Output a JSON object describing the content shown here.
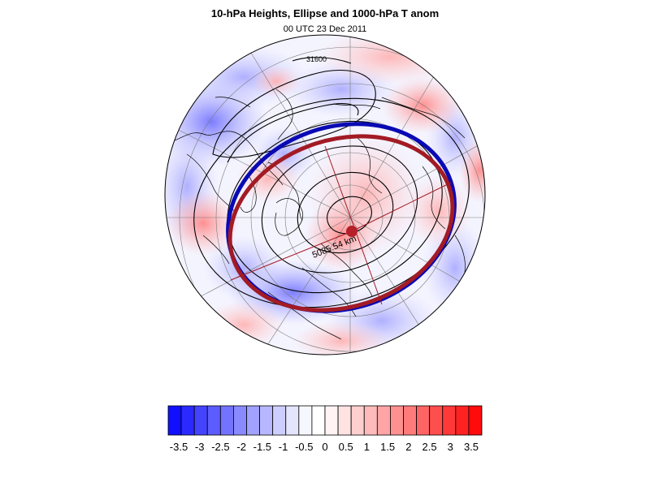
{
  "header": {
    "title": "10-hPa Heights, Ellipse and 1000-hPa T anom",
    "subtitle": "00 UTC 23 Dec 2011"
  },
  "map": {
    "projection": "north-polar-stereographic",
    "field": "1000-hPa T anom",
    "distance_label": "5085.54 km",
    "contour_label": "31600",
    "colors": {
      "ellipse_fit": "#a21b24",
      "ellipse_obs": "#0a0ab4",
      "center_dot": "#b5202a",
      "contour": "#000000",
      "coast": "#000000",
      "grid": "#7a7a7a"
    }
  },
  "colorbar": {
    "tick_labels": [
      "-3.5",
      "-3",
      "-2.5",
      "-2",
      "-1.5",
      "-1",
      "-0.5",
      "0",
      "0.5",
      "1",
      "1.5",
      "2",
      "2.5",
      "3",
      "3.5"
    ],
    "colors": [
      "#1010ff",
      "#2a2aff",
      "#4444ff",
      "#5c5cff",
      "#7373ff",
      "#8a8aff",
      "#a1a1ff",
      "#b7b7ff",
      "#cecefe",
      "#e4e4fd",
      "#f6f6ff",
      "#ffffff",
      "#fff3f3",
      "#ffe2e2",
      "#ffcfcf",
      "#ffbbbb",
      "#ffa5a5",
      "#ff9090",
      "#ff7a7a",
      "#ff6464",
      "#ff4e4e",
      "#ff3838",
      "#ff2222",
      "#ff0b0b"
    ]
  }
}
